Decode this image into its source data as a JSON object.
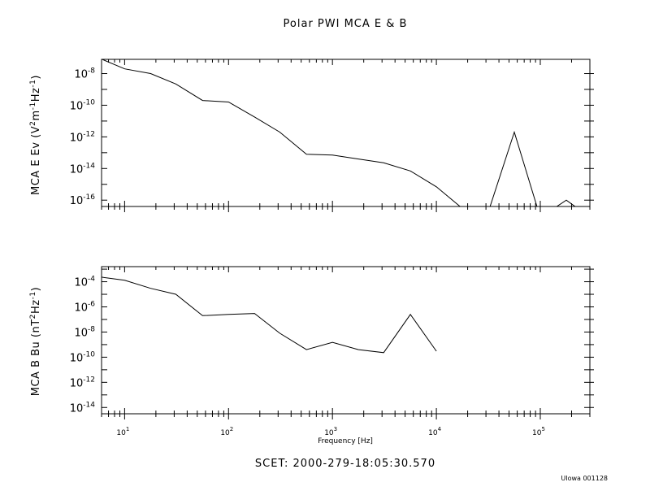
{
  "title": "Polar PWI MCA E & B",
  "scet": "SCET:   2000-279-18:05:30.570",
  "credit": "UIowa 001128",
  "x_axis": {
    "label": "Frequency [Hz]",
    "scale": "log",
    "xlim": [
      6,
      300000
    ],
    "tick_exponents": [
      1,
      2,
      3,
      4,
      5
    ]
  },
  "panels": [
    {
      "ylabel": "MCA E Ev (V²m⁻¹Hz⁻¹)",
      "ylabel_prefix": "MCA E Ev",
      "ylabel_units": "(V2m-1Hz-1)",
      "y_scale": "log",
      "ylim_exp": [
        -16.4,
        -7.1
      ],
      "tick_exponents": [
        -8,
        -10,
        -12,
        -14,
        -16
      ]
    },
    {
      "ylabel": "MCA B Bu (nT²Hz⁻¹)",
      "ylabel_prefix": "MCA B Bu",
      "ylabel_units": "(nT2Hz-1)",
      "y_scale": "log",
      "ylim_exp": [
        -14.5,
        -2.8
      ],
      "tick_exponents": [
        -4,
        -6,
        -8,
        -10,
        -12,
        -14
      ]
    }
  ],
  "chart_data": [
    {
      "type": "line",
      "title": "Polar PWI MCA E & B",
      "xlabel": "Frequency [Hz]",
      "ylabel": "MCA E Ev (V²m⁻¹Hz⁻¹)",
      "x_scale": "log",
      "y_scale": "log",
      "grid": false,
      "series": [
        {
          "x": [
            5.6,
            10,
            17.8,
            31.1,
            56.2,
            100,
            178,
            311,
            562,
            1000,
            1780,
            3110,
            5620,
            10000,
            17800,
            31100,
            56200,
            100000,
            178000,
            311000
          ],
          "y": [
            1e-07,
            2e-08,
            1e-08,
            2.2e-09,
            2e-10,
            1.6e-10,
            1.8e-11,
            2e-12,
            8e-14,
            7e-14,
            4e-14,
            2.3e-14,
            7e-15,
            7e-16,
            3e-17,
            1.3e-17,
            2e-12,
            8e-18,
            1e-16,
            7e-18
          ]
        }
      ]
    },
    {
      "type": "line",
      "xlabel": "Frequency [Hz]",
      "ylabel": "MCA B Bu (nT²Hz⁻¹)",
      "x_scale": "log",
      "y_scale": "log",
      "grid": false,
      "series": [
        {
          "x": [
            5.6,
            10,
            17.8,
            31.1,
            56.2,
            100,
            178,
            311,
            562,
            1000,
            1780,
            3110,
            5620,
            10000
          ],
          "y": [
            0.00025,
            0.00013,
            3e-05,
            1e-05,
            2e-07,
            2.5e-07,
            3e-07,
            8e-09,
            4e-10,
            1.5e-09,
            4e-10,
            2.3e-10,
            2.5e-07,
            3e-10
          ]
        }
      ]
    }
  ]
}
